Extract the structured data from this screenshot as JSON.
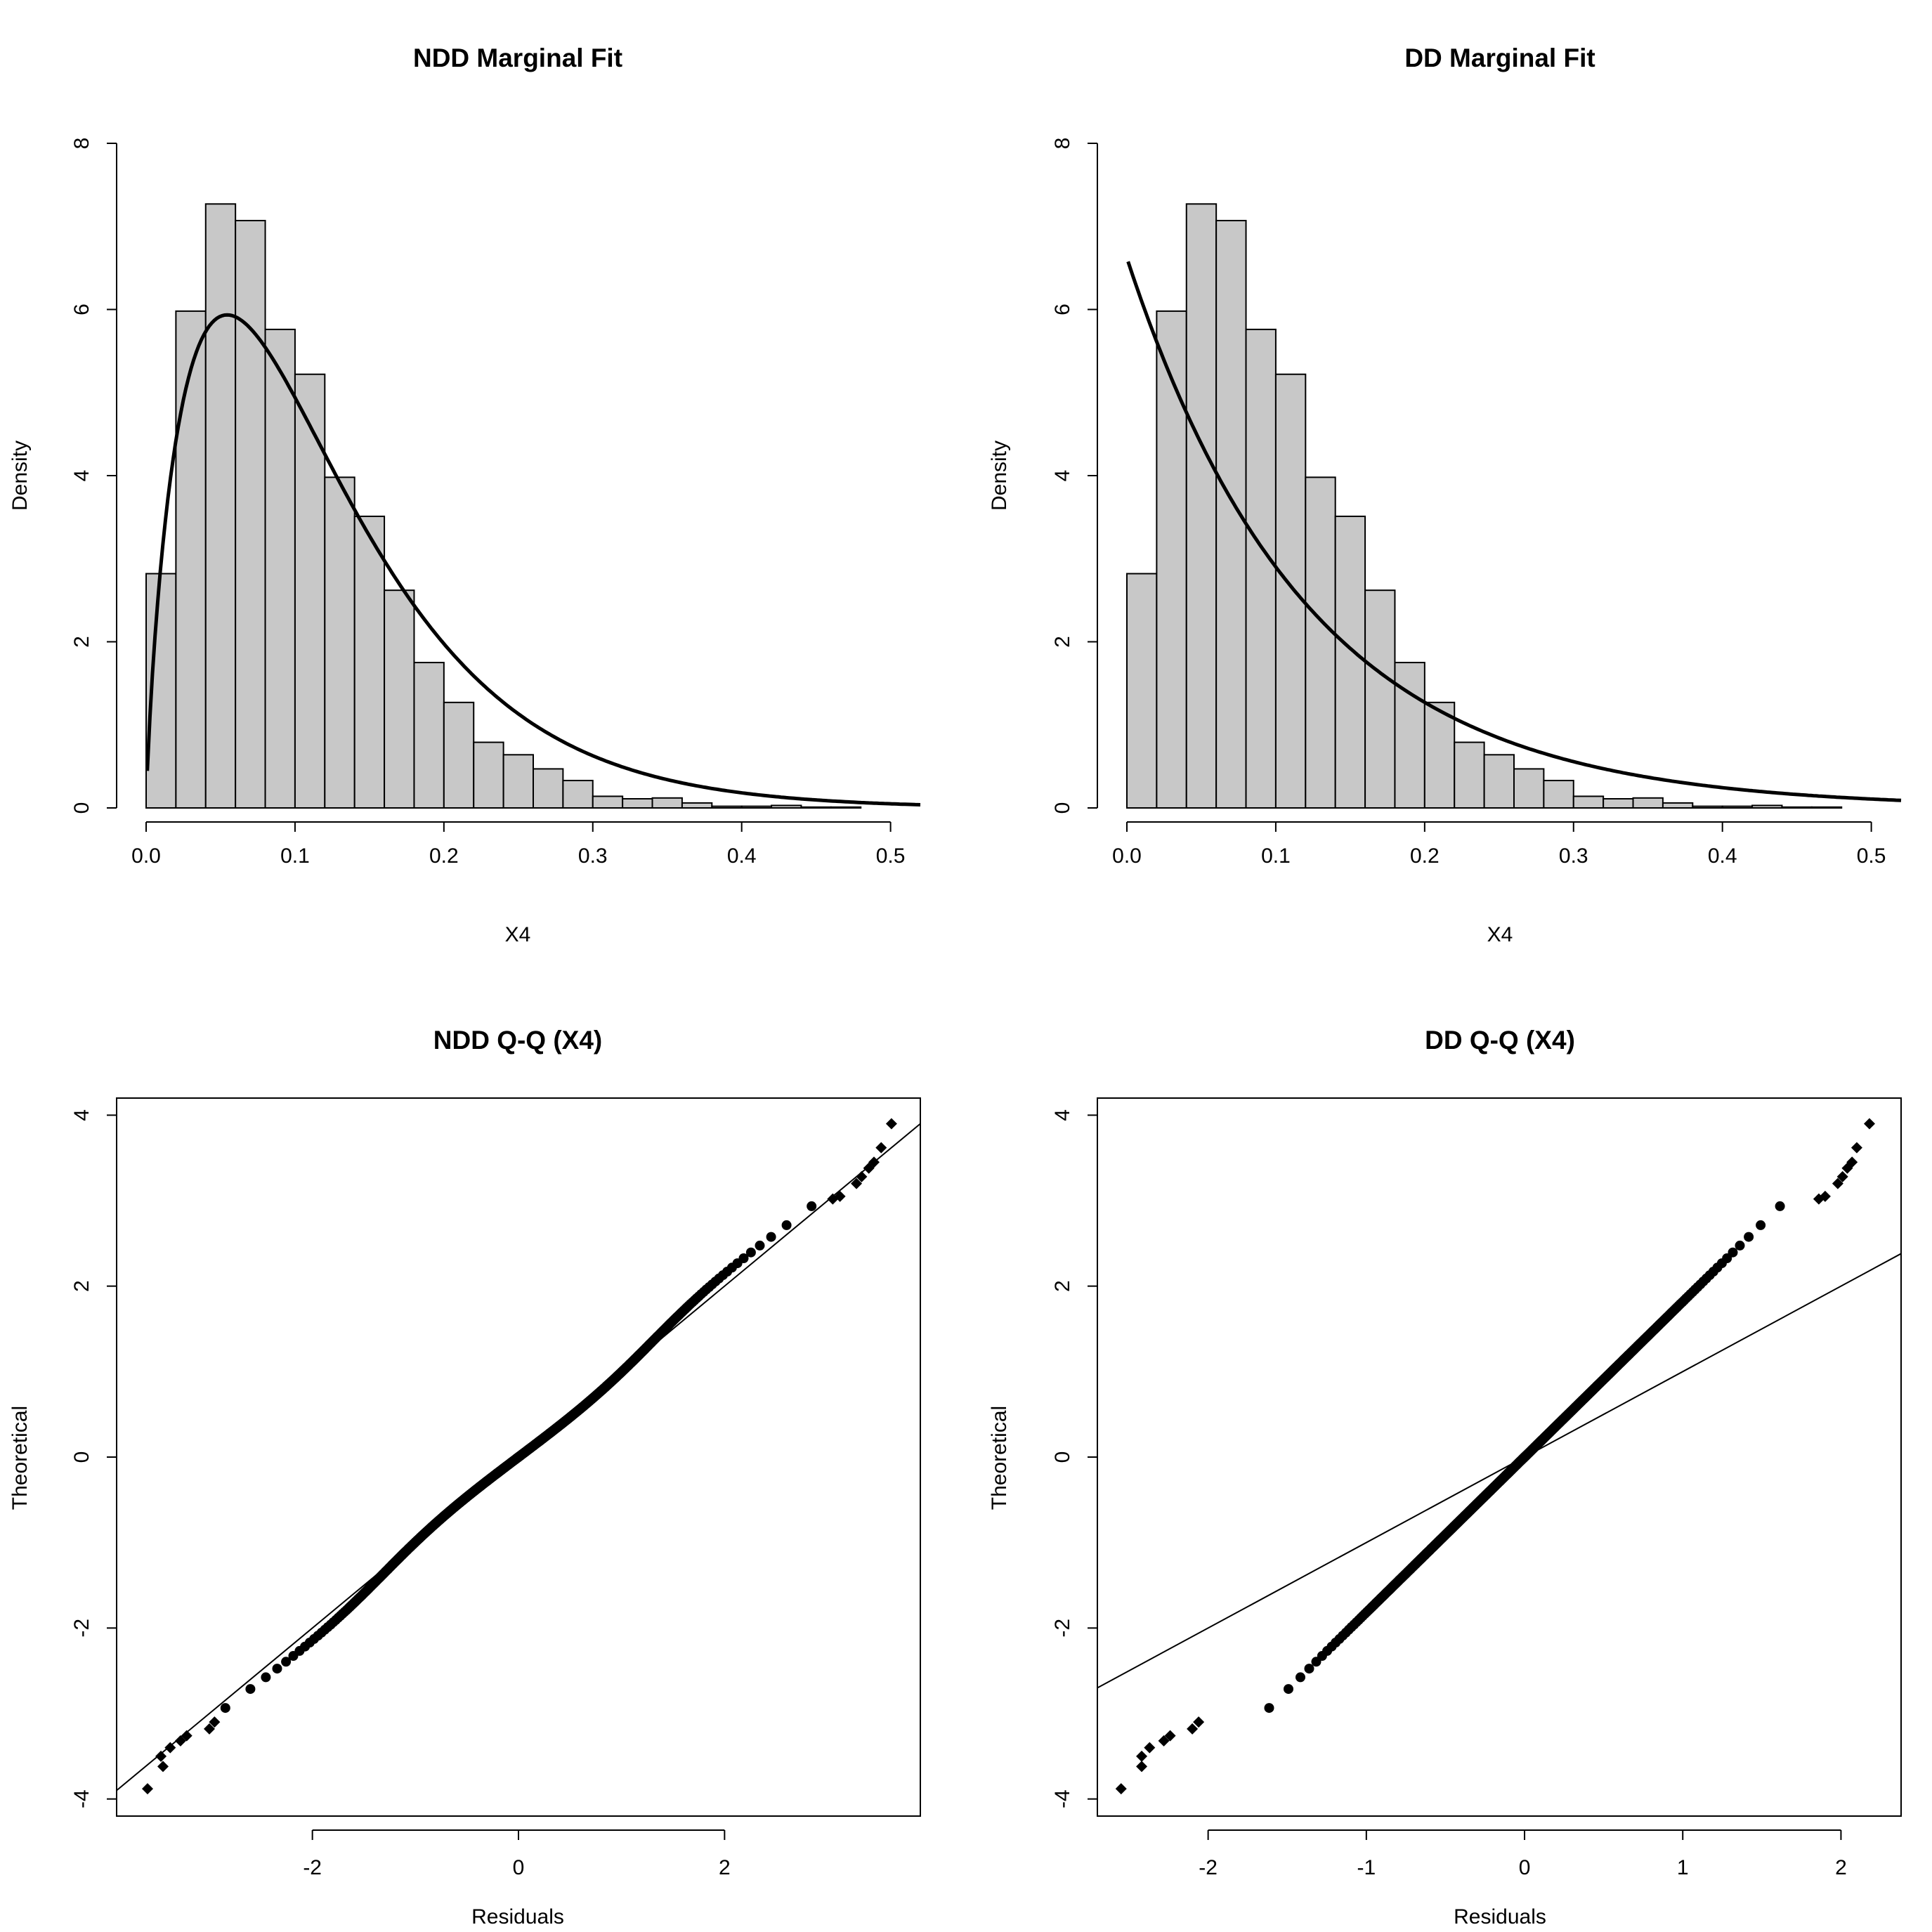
{
  "chart_data": [
    {
      "type": "histogram",
      "title": "NDD Marginal Fit",
      "xlabel": "X4",
      "ylabel": "Density",
      "xlim": [
        0,
        0.52
      ],
      "ylim": [
        0,
        8
      ],
      "xticks": [
        "0.0",
        "0.1",
        "0.2",
        "0.3",
        "0.4",
        "0.5"
      ],
      "yticks": [
        "0",
        "2",
        "4",
        "6",
        "8"
      ],
      "bin_width": 0.02,
      "bin_start": 0.0,
      "values": [
        2.82,
        5.98,
        7.27,
        7.07,
        5.76,
        5.22,
        3.98,
        3.51,
        2.62,
        1.75,
        1.27,
        0.79,
        0.64,
        0.47,
        0.33,
        0.14,
        0.11,
        0.12,
        0.06,
        0.02,
        0.02,
        0.03,
        0.01,
        0.01
      ],
      "fit_curve": {
        "model": "gamma",
        "shape": 1.8,
        "scale": 0.068
      }
    },
    {
      "type": "histogram",
      "title": "DD Marginal Fit",
      "xlabel": "X4",
      "ylabel": "Density",
      "xlim": [
        0,
        0.52
      ],
      "ylim": [
        0,
        8
      ],
      "xticks": [
        "0.0",
        "0.1",
        "0.2",
        "0.3",
        "0.4",
        "0.5"
      ],
      "yticks": [
        "0",
        "2",
        "4",
        "6",
        "8"
      ],
      "bin_width": 0.02,
      "bin_start": 0.0,
      "values": [
        2.82,
        5.98,
        7.27,
        7.07,
        5.76,
        5.22,
        3.98,
        3.51,
        2.62,
        1.75,
        1.27,
        0.79,
        0.64,
        0.47,
        0.33,
        0.14,
        0.11,
        0.12,
        0.06,
        0.02,
        0.02,
        0.03,
        0.01,
        0.01
      ],
      "fit_curve": {
        "model": "exponential",
        "rate": 8.25,
        "peak": 6.62
      }
    },
    {
      "type": "scatter",
      "title": "NDD Q-Q (X4)",
      "xlabel": "Residuals",
      "ylabel": "Theoretical",
      "xlim": [
        -3.9,
        3.9
      ],
      "ylim": [
        -4.2,
        4.2
      ],
      "xticks": [
        -2,
        0,
        2
      ],
      "xtick_labels": [
        "-2",
        "0",
        "2"
      ],
      "yticks": [
        -4,
        -2,
        0,
        2,
        4
      ],
      "ytick_labels": [
        "-4",
        "-2",
        "0",
        "2",
        "4"
      ],
      "qq": {
        "n": 600,
        "x_scale": 0.95,
        "tail_low": -3.9,
        "tail_high": 3.9
      },
      "reference_line": {
        "slope": 1.0,
        "intercept": 0.0
      },
      "tail_points": [
        [
          -3.6,
          -3.88
        ],
        [
          -3.45,
          -3.62
        ],
        [
          -3.47,
          -3.5
        ],
        [
          -3.38,
          -3.4
        ],
        [
          -3.28,
          -3.32
        ],
        [
          -3.22,
          -3.26
        ],
        [
          -3.0,
          -3.18
        ],
        [
          -2.95,
          -3.1
        ],
        [
          3.52,
          3.62
        ],
        [
          3.62,
          3.9
        ],
        [
          3.45,
          3.45
        ],
        [
          3.4,
          3.38
        ],
        [
          3.33,
          3.28
        ],
        [
          3.28,
          3.2
        ],
        [
          3.12,
          3.05
        ],
        [
          3.05,
          3.02
        ]
      ]
    },
    {
      "type": "scatter",
      "title": "DD Q-Q (X4)",
      "xlabel": "Residuals",
      "ylabel": "Theoretical",
      "xlim": [
        -2.7,
        2.38
      ],
      "ylim": [
        -4.2,
        4.2
      ],
      "xticks": [
        -2,
        -1,
        0,
        1,
        2
      ],
      "xtick_labels": [
        "-2",
        "-1",
        "0",
        "1",
        "2"
      ],
      "yticks": [
        -4,
        -2,
        0,
        2,
        4
      ],
      "ytick_labels": [
        "-4",
        "-2",
        "0",
        "2",
        "4"
      ],
      "qq": {
        "n": 600,
        "x_scale": 0.55,
        "x_shift": -0.45
      },
      "reference_line": {
        "slope": 1.0,
        "intercept": 0.0
      },
      "tail_points": [
        [
          -2.55,
          -3.88
        ],
        [
          -2.42,
          -3.62
        ],
        [
          -2.42,
          -3.5
        ],
        [
          -2.37,
          -3.4
        ],
        [
          -2.28,
          -3.32
        ],
        [
          -2.24,
          -3.26
        ],
        [
          -2.1,
          -3.18
        ],
        [
          -2.06,
          -3.1
        ],
        [
          2.1,
          3.62
        ],
        [
          2.18,
          3.9
        ],
        [
          2.07,
          3.45
        ],
        [
          2.04,
          3.38
        ],
        [
          2.01,
          3.28
        ],
        [
          1.98,
          3.2
        ],
        [
          1.9,
          3.05
        ],
        [
          1.86,
          3.02
        ]
      ]
    }
  ]
}
